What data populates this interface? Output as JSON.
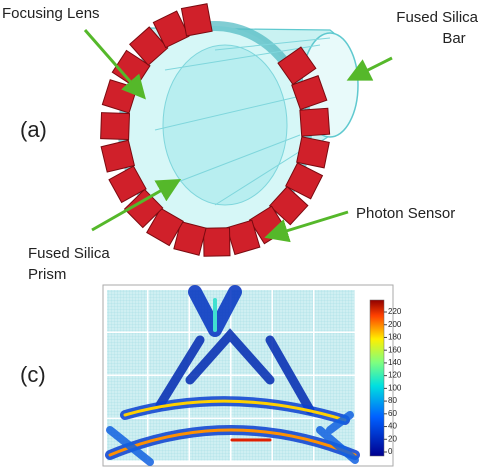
{
  "panel_a": {
    "label": "(a)",
    "focusing_lens": "Focusing Lens",
    "fused_silica_bar": [
      "Fused Silica",
      "Bar"
    ],
    "photon_sensor": "Photon Sensor",
    "fused_silica_prism": [
      "Fused Silica",
      "Prism"
    ]
  },
  "panel_c": {
    "label": "(c)",
    "colorbar": {
      "ticks": [
        0,
        20,
        40,
        60,
        80,
        100,
        120,
        140,
        160,
        180,
        200,
        220
      ]
    }
  }
}
